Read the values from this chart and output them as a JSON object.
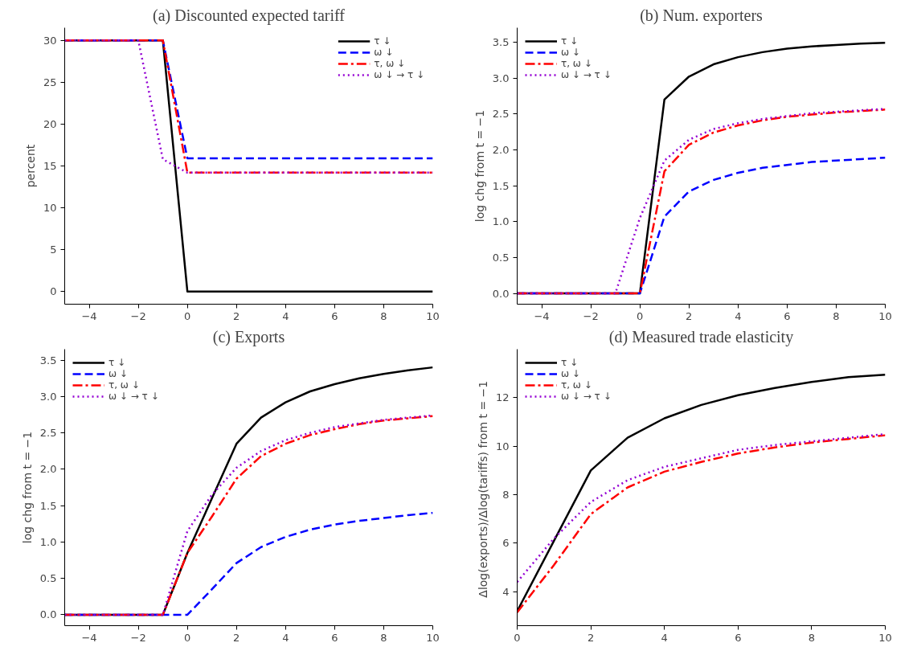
{
  "chart_data": [
    {
      "type": "line",
      "title": "(a) Discounted expected tariff",
      "ylabel": "percent",
      "x": [
        -5,
        -4,
        -3,
        -2,
        -1,
        0,
        1,
        2,
        3,
        4,
        5,
        6,
        7,
        8,
        9,
        10
      ],
      "xlim": [
        -5,
        10
      ],
      "xticks": [
        -4,
        -2,
        0,
        2,
        4,
        6,
        8,
        10
      ],
      "ylim": [
        -1.5,
        31.5
      ],
      "yticks": [
        0,
        5,
        10,
        15,
        20,
        25,
        30
      ],
      "grid": false,
      "legend": "top right",
      "marker": "none",
      "series": [
        {
          "name": "τ ↓",
          "color": "#000000",
          "line_style": "solid",
          "values": [
            30,
            30,
            30,
            30,
            30,
            0,
            0,
            0,
            0,
            0,
            0,
            0,
            0,
            0,
            0,
            0
          ]
        },
        {
          "name": "ω ↓",
          "color": "#0000ff",
          "line_style": "dashed",
          "values": [
            30,
            30,
            30,
            30,
            30,
            15.9,
            15.9,
            15.9,
            15.9,
            15.9,
            15.9,
            15.9,
            15.9,
            15.9,
            15.9,
            15.9
          ]
        },
        {
          "name": "τ, ω ↓",
          "color": "#ff0000",
          "line_style": "dashdot",
          "values": [
            30,
            30,
            30,
            30,
            30,
            14.2,
            14.2,
            14.2,
            14.2,
            14.2,
            14.2,
            14.2,
            14.2,
            14.2,
            14.2,
            14.2
          ]
        },
        {
          "name": "ω ↓ → τ ↓",
          "color": "#9400d3",
          "line_style": "dotted",
          "values": [
            30,
            30,
            30,
            30,
            15.8,
            14.2,
            14.2,
            14.2,
            14.2,
            14.2,
            14.2,
            14.2,
            14.2,
            14.2,
            14.2,
            14.2
          ]
        }
      ]
    },
    {
      "type": "line",
      "title": "(b) Num. exporters",
      "ylabel": "log chg from t = −1",
      "x": [
        -5,
        -4,
        -3,
        -2,
        -1,
        0,
        1,
        2,
        3,
        4,
        5,
        6,
        7,
        8,
        9,
        10
      ],
      "xlim": [
        -5,
        10
      ],
      "xticks": [
        -4,
        -2,
        0,
        2,
        4,
        6,
        8,
        10
      ],
      "ylim": [
        -0.15,
        3.7
      ],
      "yticks": [
        {
          "value": 0,
          "label": "0.0"
        },
        0.5,
        {
          "value": 1,
          "label": "1.0"
        },
        1.5,
        {
          "value": 2,
          "label": "2.0"
        },
        2.5,
        {
          "value": 3,
          "label": "3.0"
        },
        3.5
      ],
      "grid": false,
      "legend": "top left",
      "marker": "none",
      "series": [
        {
          "name": "τ ↓",
          "color": "#000000",
          "line_style": "solid",
          "values": [
            0,
            0,
            0,
            0,
            0,
            0,
            2.7,
            3.02,
            3.19,
            3.29,
            3.36,
            3.41,
            3.44,
            3.46,
            3.48,
            3.49
          ]
        },
        {
          "name": "ω ↓",
          "color": "#0000ff",
          "line_style": "dashed",
          "values": [
            0,
            0,
            0,
            0,
            0,
            0,
            1.07,
            1.42,
            1.58,
            1.68,
            1.75,
            1.79,
            1.83,
            1.85,
            1.87,
            1.89
          ]
        },
        {
          "name": "τ, ω ↓",
          "color": "#ff0000",
          "line_style": "dashdot",
          "values": [
            0,
            0,
            0,
            0,
            0,
            0,
            1.7,
            2.07,
            2.24,
            2.34,
            2.41,
            2.46,
            2.49,
            2.52,
            2.54,
            2.56
          ]
        },
        {
          "name": "ω ↓ → τ ↓",
          "color": "#9400d3",
          "line_style": "dotted",
          "values": [
            0,
            0,
            0,
            0,
            0,
            1.05,
            1.85,
            2.14,
            2.29,
            2.37,
            2.43,
            2.47,
            2.51,
            2.53,
            2.55,
            2.57
          ]
        }
      ]
    },
    {
      "type": "line",
      "title": "(c) Exports",
      "ylabel": "log chg from t = −1",
      "x": [
        -5,
        -4,
        -3,
        -2,
        -1,
        0,
        1,
        2,
        3,
        4,
        5,
        6,
        7,
        8,
        9,
        10
      ],
      "xlim": [
        -5,
        10
      ],
      "xticks": [
        -4,
        -2,
        0,
        2,
        4,
        6,
        8,
        10
      ],
      "ylim": [
        -0.15,
        3.65
      ],
      "yticks": [
        {
          "value": 0,
          "label": "0.0"
        },
        0.5,
        {
          "value": 1,
          "label": "1.0"
        },
        1.5,
        {
          "value": 2,
          "label": "2.0"
        },
        2.5,
        {
          "value": 3,
          "label": "3.0"
        },
        3.5
      ],
      "grid": false,
      "legend": "top left",
      "marker": "none",
      "series": [
        {
          "name": "τ ↓",
          "color": "#000000",
          "line_style": "solid",
          "values": [
            0,
            0,
            0,
            0,
            0,
            0.85,
            1.6,
            2.35,
            2.71,
            2.92,
            3.07,
            3.17,
            3.25,
            3.31,
            3.36,
            3.4
          ]
        },
        {
          "name": "ω ↓",
          "color": "#0000ff",
          "line_style": "dashed",
          "values": [
            0,
            0,
            0,
            0,
            0,
            0,
            0.35,
            0.71,
            0.93,
            1.07,
            1.17,
            1.24,
            1.29,
            1.33,
            1.37,
            1.4
          ]
        },
        {
          "name": "τ, ω ↓",
          "color": "#ff0000",
          "line_style": "dashdot",
          "values": [
            0,
            0,
            0,
            0,
            0,
            0.85,
            1.35,
            1.87,
            2.18,
            2.35,
            2.47,
            2.55,
            2.62,
            2.67,
            2.7,
            2.73
          ]
        },
        {
          "name": "ω ↓ → τ ↓",
          "color": "#9400d3",
          "line_style": "dotted",
          "values": [
            0,
            0,
            0,
            0,
            0,
            1.15,
            1.65,
            2.02,
            2.25,
            2.4,
            2.5,
            2.58,
            2.63,
            2.68,
            2.71,
            2.74
          ]
        }
      ]
    },
    {
      "type": "line",
      "title": "(d) Measured trade elasticity",
      "ylabel": "Δlog(exports)/Δlog(tariffs)  from t = −1",
      "x": [
        0,
        1,
        2,
        3,
        4,
        5,
        6,
        7,
        8,
        9,
        10
      ],
      "xlim": [
        0,
        10
      ],
      "xticks": [
        0,
        2,
        4,
        6,
        8,
        10
      ],
      "ylim": [
        2.6,
        14
      ],
      "yticks": [
        4,
        6,
        8,
        10,
        12
      ],
      "grid": false,
      "legend": "top left",
      "marker": "none",
      "series": [
        {
          "name": "τ ↓",
          "color": "#000000",
          "line_style": "solid",
          "values": [
            3.2,
            6.1,
            9.0,
            10.35,
            11.15,
            11.7,
            12.1,
            12.4,
            12.65,
            12.85,
            12.95
          ]
        },
        {
          "name": "ω ↓",
          "color": "#0000ff",
          "line_style": "dashed",
          "values": [
            null,
            null,
            null,
            null,
            null,
            null,
            null,
            null,
            null,
            null,
            null
          ]
        },
        {
          "name": "τ, ω ↓",
          "color": "#ff0000",
          "line_style": "dashdot",
          "values": [
            3.15,
            5.1,
            7.2,
            8.3,
            8.95,
            9.35,
            9.7,
            9.95,
            10.15,
            10.3,
            10.45
          ]
        },
        {
          "name": "ω ↓ → τ ↓",
          "color": "#9400d3",
          "line_style": "dotted",
          "values": [
            4.4,
            6.2,
            7.7,
            8.6,
            9.15,
            9.5,
            9.85,
            10.05,
            10.2,
            10.35,
            10.5
          ]
        }
      ]
    }
  ]
}
